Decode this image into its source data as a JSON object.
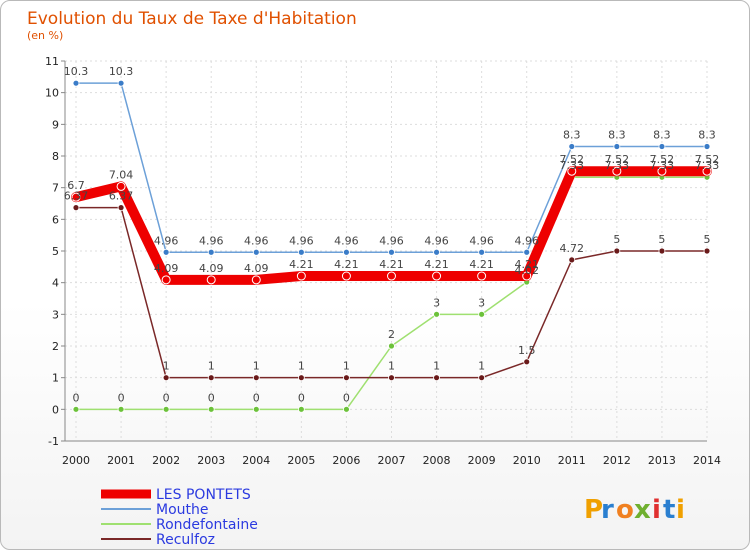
{
  "chart_data": {
    "type": "line",
    "title": "Evolution du Taux de Taxe d'Habitation",
    "subtitle": "(en %)",
    "ylim": [
      -1,
      11
    ],
    "y_ticks": [
      "-1",
      "0",
      "1",
      "2",
      "3",
      "4",
      "5",
      "6",
      "7",
      "8",
      "9",
      "10",
      "11"
    ],
    "x": [
      "2000",
      "2001",
      "2002",
      "2003",
      "2004",
      "2005",
      "2006",
      "2007",
      "2008",
      "2009",
      "2010",
      "2011",
      "2012",
      "2013",
      "2014"
    ],
    "series": [
      {
        "name": "Mouthe",
        "color": "#6ca0d8",
        "marker_color": "#3a7cc8",
        "values": [
          10.3,
          10.3,
          4.96,
          4.96,
          4.96,
          4.96,
          4.96,
          4.96,
          4.96,
          4.96,
          4.96,
          8.3,
          8.3,
          8.3,
          8.3
        ],
        "labels": [
          "10.3",
          "10.3",
          "4.96",
          "4.96",
          "4.96",
          "4.96",
          "4.96",
          "4.96",
          "4.96",
          "4.96",
          "4.96",
          "8.3",
          "8.3",
          "8.3",
          "8.3"
        ]
      },
      {
        "name": "Rondefontaine",
        "color": "#9fe070",
        "marker_color": "#6cc23a",
        "values": [
          0,
          0,
          0,
          0,
          0,
          0,
          0,
          2,
          3,
          3,
          4.02,
          7.33,
          7.33,
          7.33,
          7.33
        ],
        "labels": [
          "0",
          "0",
          "0",
          "0",
          "0",
          "0",
          "0",
          "2",
          "3",
          "3",
          "4.02",
          "7.33",
          "7.33",
          "7.33",
          "7.33"
        ]
      },
      {
        "name": "Reculfoz",
        "color": "#7a2828",
        "marker_color": "#6a1a1a",
        "values": [
          6.37,
          6.37,
          1,
          1,
          1,
          1,
          1,
          1,
          1,
          1,
          1.5,
          4.72,
          5,
          5,
          5
        ],
        "labels": [
          "6.37",
          "6.37",
          "1",
          "1",
          "1",
          "1",
          "1",
          "1",
          "1",
          "1",
          "1.5",
          "4.72",
          "5",
          "5",
          "5"
        ]
      },
      {
        "name": "LES PONTETS",
        "color": "#ee0000",
        "marker_color": "#ee0000",
        "values": [
          6.7,
          7.04,
          4.09,
          4.09,
          4.09,
          4.21,
          4.21,
          4.21,
          4.21,
          4.21,
          4.21,
          7.52,
          7.52,
          7.52,
          7.52
        ],
        "labels": [
          "6.7",
          "7.04",
          "4.09",
          "4.09",
          "4.09",
          "4.21",
          "4.21",
          "4.21",
          "4.21",
          "4.21",
          "4.21",
          "7.52",
          "7.52",
          "7.52",
          "7.52"
        ]
      }
    ],
    "legend": [
      "LES PONTETS",
      "Mouthe",
      "Rondefontaine",
      "Reculfoz"
    ]
  },
  "brand": {
    "letters": [
      "P",
      "r",
      "o",
      "x",
      "i",
      "t",
      "i"
    ],
    "colors": [
      "#f0a000",
      "#2a7fd0",
      "#f08020",
      "#70b030",
      "#e03030",
      "#2a7fd0",
      "#f0a000"
    ]
  }
}
